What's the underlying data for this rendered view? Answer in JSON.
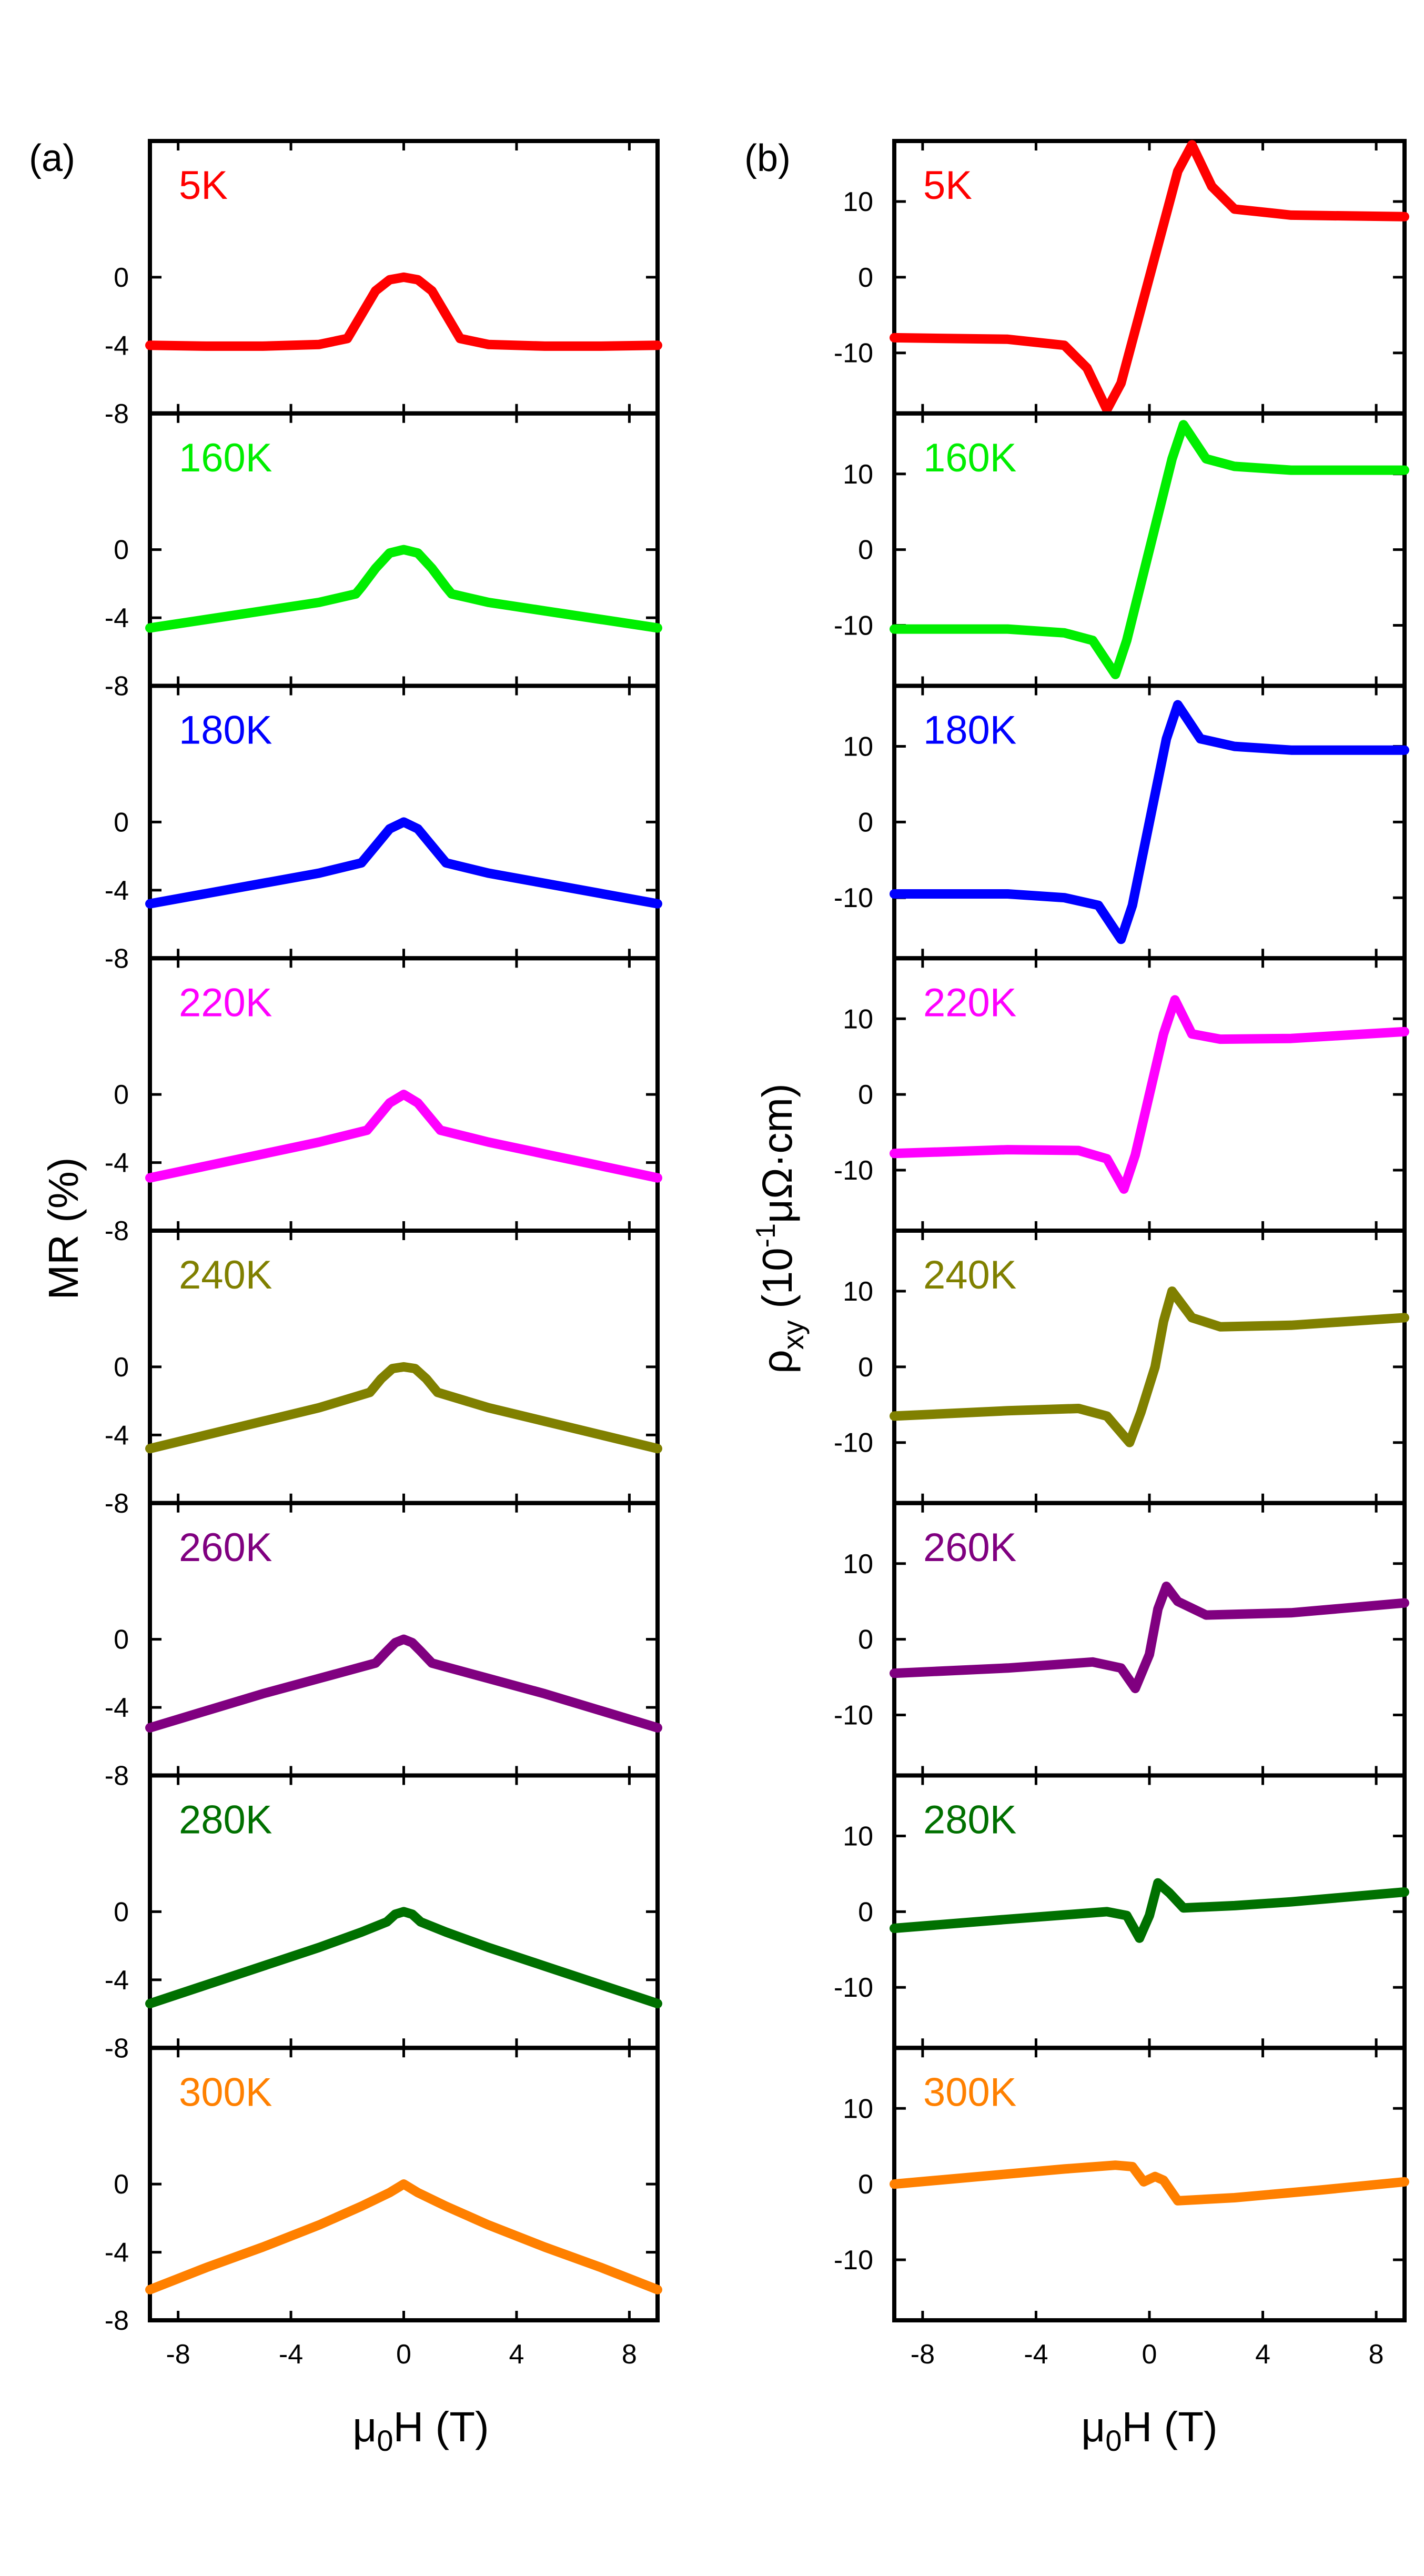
{
  "chart_data": [
    {
      "type": "line",
      "panel_label": "(a)",
      "xlabel_parts": [
        "μ",
        "0",
        "H (T)"
      ],
      "ylabel": "MR (%)",
      "xlim": [
        -9,
        9
      ],
      "ylim": [
        -8,
        8
      ],
      "xticks": [
        -8,
        -4,
        0,
        4,
        8
      ],
      "xtick_labels": [
        "-8",
        "-4",
        "0",
        "4",
        "8"
      ],
      "yticks": [
        0,
        -4,
        -8
      ],
      "ytick_labels": [
        "0",
        "-4",
        "-8"
      ],
      "series": [
        {
          "name": "5K",
          "color": "#ff0000",
          "x": [
            -9,
            -7,
            -5,
            -3,
            -2,
            -1.5,
            -1,
            -0.5,
            0,
            0.5,
            1,
            1.5,
            2,
            3,
            5,
            7,
            9
          ],
          "y": [
            -4.0,
            -4.05,
            -4.05,
            -3.95,
            -3.6,
            -2.2,
            -0.8,
            -0.15,
            0,
            -0.15,
            -0.8,
            -2.2,
            -3.6,
            -3.95,
            -4.05,
            -4.05,
            -4.0
          ]
        },
        {
          "name": "160K",
          "color": "#00ee00",
          "x": [
            -9,
            -7,
            -5,
            -3,
            -1.7,
            -1.5,
            -1,
            -0.5,
            0,
            0.5,
            1,
            1.5,
            1.7,
            3,
            5,
            7,
            9
          ],
          "y": [
            -4.6,
            -4.1,
            -3.6,
            -3.1,
            -2.6,
            -2.2,
            -1.1,
            -0.2,
            0,
            -0.2,
            -1.1,
            -2.2,
            -2.6,
            -3.1,
            -3.6,
            -4.1,
            -4.6
          ]
        },
        {
          "name": "180K",
          "color": "#0000ff",
          "x": [
            -9,
            -7,
            -5,
            -3,
            -1.5,
            -1,
            -0.5,
            0,
            0.5,
            1,
            1.5,
            3,
            5,
            7,
            9
          ],
          "y": [
            -4.8,
            -4.2,
            -3.6,
            -3.0,
            -2.4,
            -1.4,
            -0.4,
            0,
            -0.4,
            -1.4,
            -2.4,
            -3.0,
            -3.6,
            -4.2,
            -4.8
          ]
        },
        {
          "name": "220K",
          "color": "#ff00ff",
          "x": [
            -9,
            -7,
            -5,
            -3,
            -1.3,
            -1,
            -0.5,
            0,
            0.5,
            1,
            1.3,
            3,
            5,
            7,
            9
          ],
          "y": [
            -4.9,
            -4.2,
            -3.5,
            -2.8,
            -2.1,
            -1.5,
            -0.5,
            0,
            -0.5,
            -1.5,
            -2.1,
            -2.8,
            -3.5,
            -4.2,
            -4.9
          ]
        },
        {
          "name": "240K",
          "color": "#808000",
          "x": [
            -9,
            -7,
            -5,
            -3,
            -1.2,
            -0.8,
            -0.4,
            0,
            0.4,
            0.8,
            1.2,
            3,
            5,
            7,
            9
          ],
          "y": [
            -4.8,
            -4.0,
            -3.2,
            -2.4,
            -1.5,
            -0.7,
            -0.1,
            0,
            -0.1,
            -0.7,
            -1.5,
            -2.4,
            -3.2,
            -4.0,
            -4.8
          ]
        },
        {
          "name": "260K",
          "color": "#800080",
          "x": [
            -9,
            -7,
            -5,
            -3,
            -1.0,
            -0.6,
            -0.3,
            0,
            0.3,
            0.6,
            1.0,
            3,
            5,
            7,
            9
          ],
          "y": [
            -5.2,
            -4.2,
            -3.2,
            -2.3,
            -1.4,
            -0.7,
            -0.2,
            0,
            -0.2,
            -0.7,
            -1.4,
            -2.3,
            -3.2,
            -4.2,
            -5.2
          ]
        },
        {
          "name": "280K",
          "color": "#007000",
          "x": [
            -9,
            -7,
            -5,
            -3,
            -1.5,
            -0.6,
            -0.3,
            0,
            0.3,
            0.6,
            1.5,
            3,
            5,
            7,
            9
          ],
          "y": [
            -5.4,
            -4.3,
            -3.2,
            -2.1,
            -1.2,
            -0.6,
            -0.15,
            0,
            -0.15,
            -0.6,
            -1.2,
            -2.1,
            -3.2,
            -4.3,
            -5.4
          ]
        },
        {
          "name": "300K",
          "color": "#ff8000",
          "x": [
            -9,
            -7,
            -5,
            -3,
            -1.5,
            -0.5,
            0,
            0.5,
            1.5,
            3,
            5,
            7,
            9
          ],
          "y": [
            -6.2,
            -4.9,
            -3.7,
            -2.4,
            -1.3,
            -0.5,
            0,
            -0.5,
            -1.3,
            -2.4,
            -3.7,
            -4.9,
            -6.2
          ]
        }
      ]
    },
    {
      "type": "line",
      "panel_label": "(b)",
      "xlabel_parts": [
        "μ",
        "0",
        "H (T)"
      ],
      "ylabel_parts": [
        "ρ",
        "xy",
        " (10",
        "-1",
        "μΩ·cm)"
      ],
      "xlim": [
        -9,
        9
      ],
      "ylim": [
        -18,
        18
      ],
      "xticks": [
        -8,
        -4,
        0,
        4,
        8
      ],
      "xtick_labels": [
        "-8",
        "-4",
        "0",
        "4",
        "8"
      ],
      "yticks": [
        10,
        0,
        -10
      ],
      "ytick_labels": [
        "10",
        "0",
        "-10"
      ],
      "series": [
        {
          "name": "5K",
          "color": "#ff0000",
          "x": [
            -9,
            -5,
            -3,
            -2.2,
            -1.5,
            -1.0,
            0,
            1.0,
            1.5,
            2.2,
            3,
            5,
            9
          ],
          "y": [
            -8,
            -8.2,
            -9,
            -12,
            -17.5,
            -14,
            0,
            14,
            17.5,
            12,
            9,
            8.2,
            8
          ]
        },
        {
          "name": "160K",
          "color": "#00ee00",
          "x": [
            -9,
            -5,
            -3,
            -2,
            -1.2,
            -0.8,
            0,
            0.8,
            1.2,
            2,
            3,
            5,
            9
          ],
          "y": [
            -10.5,
            -10.5,
            -11,
            -12,
            -16.5,
            -12,
            0,
            12,
            16.5,
            12,
            11,
            10.5,
            10.5
          ]
        },
        {
          "name": "180K",
          "color": "#0000ff",
          "x": [
            -9,
            -5,
            -3,
            -1.8,
            -1.0,
            -0.6,
            0,
            0.6,
            1.0,
            1.8,
            3,
            5,
            9
          ],
          "y": [
            -9.5,
            -9.5,
            -10,
            -11,
            -15.5,
            -11,
            0,
            11,
            15.5,
            11,
            10,
            9.5,
            9.5
          ]
        },
        {
          "name": "220K",
          "color": "#ff00ff",
          "x": [
            -9,
            -5,
            -2.5,
            -1.5,
            -0.9,
            -0.5,
            0,
            0.5,
            0.9,
            1.5,
            2.5,
            5,
            9
          ],
          "y": [
            -7.8,
            -7.3,
            -7.4,
            -8.5,
            -12.5,
            -8,
            0,
            8,
            12.5,
            8,
            7.3,
            7.4,
            8.3
          ]
        },
        {
          "name": "240K",
          "color": "#808000",
          "x": [
            -9,
            -5,
            -2.5,
            -1.5,
            -0.7,
            -0.3,
            0.2,
            0.5,
            0.8,
            1.5,
            2.5,
            5,
            9
          ],
          "y": [
            -6.5,
            -5.8,
            -5.5,
            -6.5,
            -10,
            -6,
            0,
            6,
            10,
            6.5,
            5.3,
            5.5,
            6.5
          ]
        },
        {
          "name": "260K",
          "color": "#800080",
          "x": [
            -9,
            -5,
            -2,
            -1.0,
            -0.5,
            0,
            0.3,
            0.6,
            1.0,
            2,
            5,
            9
          ],
          "y": [
            -4.5,
            -3.8,
            -3.0,
            -3.8,
            -6.5,
            -2,
            4,
            7,
            5,
            3.2,
            3.5,
            4.8
          ]
        },
        {
          "name": "280K",
          "color": "#007000",
          "x": [
            -9,
            -5,
            -1.5,
            -0.8,
            -0.35,
            0,
            0.3,
            0.7,
            1.2,
            3,
            5,
            9
          ],
          "y": [
            -2.2,
            -1.0,
            0,
            -0.5,
            -3.5,
            -0.5,
            3.8,
            2.5,
            0.5,
            0.8,
            1.3,
            2.6
          ]
        },
        {
          "name": "300K",
          "color": "#ff8000",
          "x": [
            -9,
            -6,
            -3,
            -1.2,
            -0.6,
            -0.2,
            0.2,
            0.5,
            1.0,
            3,
            6,
            9
          ],
          "y": [
            0,
            1.0,
            2.0,
            2.5,
            2.3,
            0.3,
            1.0,
            0.5,
            -2.2,
            -1.8,
            -0.8,
            0.3
          ]
        }
      ]
    }
  ]
}
